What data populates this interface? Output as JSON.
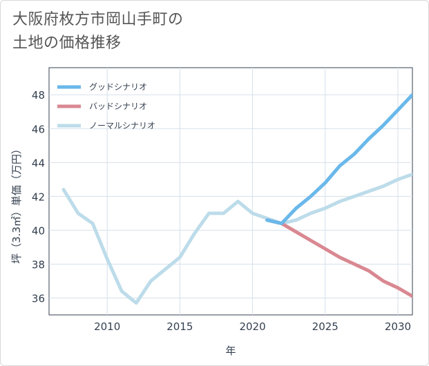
{
  "chart_data": {
    "type": "line",
    "title_lines": [
      "大阪府枚方市岡山手町の",
      "土地の価格推移"
    ],
    "xlabel": "年",
    "ylabel": "坪（3.3㎡）単価（万円）",
    "xlim": [
      2006,
      2031
    ],
    "ylim": [
      35,
      49.6
    ],
    "xticks": [
      2010,
      2015,
      2020,
      2025,
      2030
    ],
    "yticks": [
      36,
      38,
      40,
      42,
      44,
      46,
      48
    ],
    "grid": true,
    "legend_position": "top-left",
    "series": [
      {
        "name": "グッドシナリオ",
        "color": "#6ab8ea",
        "x": [
          2021,
          2022,
          2023,
          2024,
          2025,
          2026,
          2027,
          2028,
          2029,
          2030,
          2031
        ],
        "y": [
          40.6,
          40.4,
          41.3,
          42.0,
          42.8,
          43.8,
          44.5,
          45.4,
          46.2,
          47.1,
          48.0
        ]
      },
      {
        "name": "バッドシナリオ",
        "color": "#d98891",
        "x": [
          2021,
          2022,
          2023,
          2024,
          2025,
          2026,
          2027,
          2028,
          2029,
          2030,
          2031
        ],
        "y": [
          40.6,
          40.4,
          39.9,
          39.4,
          38.9,
          38.4,
          38.0,
          37.6,
          37.0,
          36.6,
          36.1
        ]
      },
      {
        "name": "ノーマルシナリオ",
        "color": "#bddcea",
        "x": [
          2007,
          2008,
          2009,
          2010,
          2011,
          2012,
          2013,
          2014,
          2015,
          2016,
          2017,
          2018,
          2019,
          2020,
          2021,
          2022,
          2023,
          2024,
          2025,
          2026,
          2027,
          2028,
          2029,
          2030,
          2031
        ],
        "y": [
          42.4,
          41.0,
          40.4,
          38.3,
          36.4,
          35.7,
          37.0,
          37.7,
          38.4,
          39.8,
          41.0,
          41.0,
          41.7,
          41.0,
          40.7,
          40.4,
          40.6,
          41.0,
          41.3,
          41.7,
          42.0,
          42.3,
          42.6,
          43.0,
          43.3
        ]
      }
    ]
  }
}
